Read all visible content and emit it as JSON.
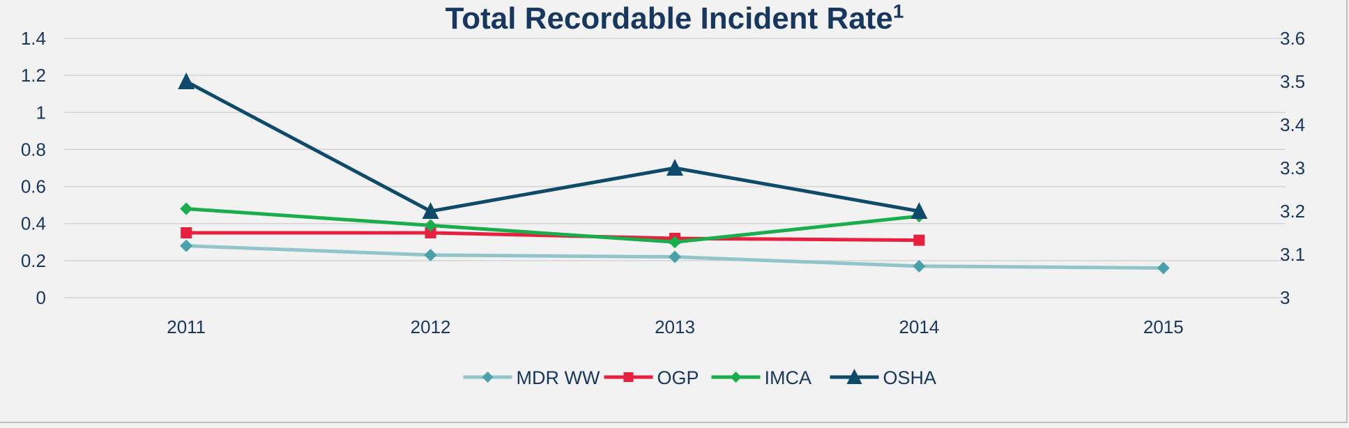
{
  "chart_data": {
    "type": "line",
    "title": "Total Recordable Incident Rate",
    "title_superscript": "1",
    "categories": [
      "2011",
      "2012",
      "2013",
      "2014",
      "2015"
    ],
    "y_left": {
      "ticks": [
        "0",
        "0.2",
        "0.4",
        "0.6",
        "0.8",
        "1",
        "1.2",
        "1.4"
      ],
      "range": [
        0,
        1.4
      ]
    },
    "y_right": {
      "ticks": [
        "3",
        "3.1",
        "3.2",
        "3.3",
        "3.4",
        "3.5",
        "3.6"
      ],
      "range": [
        3,
        3.6
      ]
    },
    "grid": true,
    "legend_position": "bottom",
    "series": [
      {
        "name": "MDR WW",
        "color": "#92c5cb",
        "marker": "diamond",
        "marker_color": "#4aa1ab",
        "axis": "left",
        "values": [
          0.28,
          0.23,
          0.22,
          0.17,
          0.16
        ]
      },
      {
        "name": "OGP",
        "color": "#e8203f",
        "marker": "square",
        "marker_color": "#e8203f",
        "axis": "left",
        "values": [
          0.35,
          0.35,
          0.32,
          0.31,
          null
        ]
      },
      {
        "name": "IMCA",
        "color": "#1aad4c",
        "marker": "diamond",
        "marker_color": "#1aad4c",
        "axis": "left",
        "values": [
          0.48,
          0.39,
          0.3,
          0.44,
          null
        ]
      },
      {
        "name": "OSHA",
        "color": "#0e4a6a",
        "marker": "triangle",
        "marker_color": "#0e4a6a",
        "axis": "right",
        "values": [
          3.5,
          3.2,
          3.3,
          3.2,
          null
        ]
      }
    ],
    "colors": {
      "axis_text": "#17375e",
      "grid": "#d4d4d4"
    }
  }
}
